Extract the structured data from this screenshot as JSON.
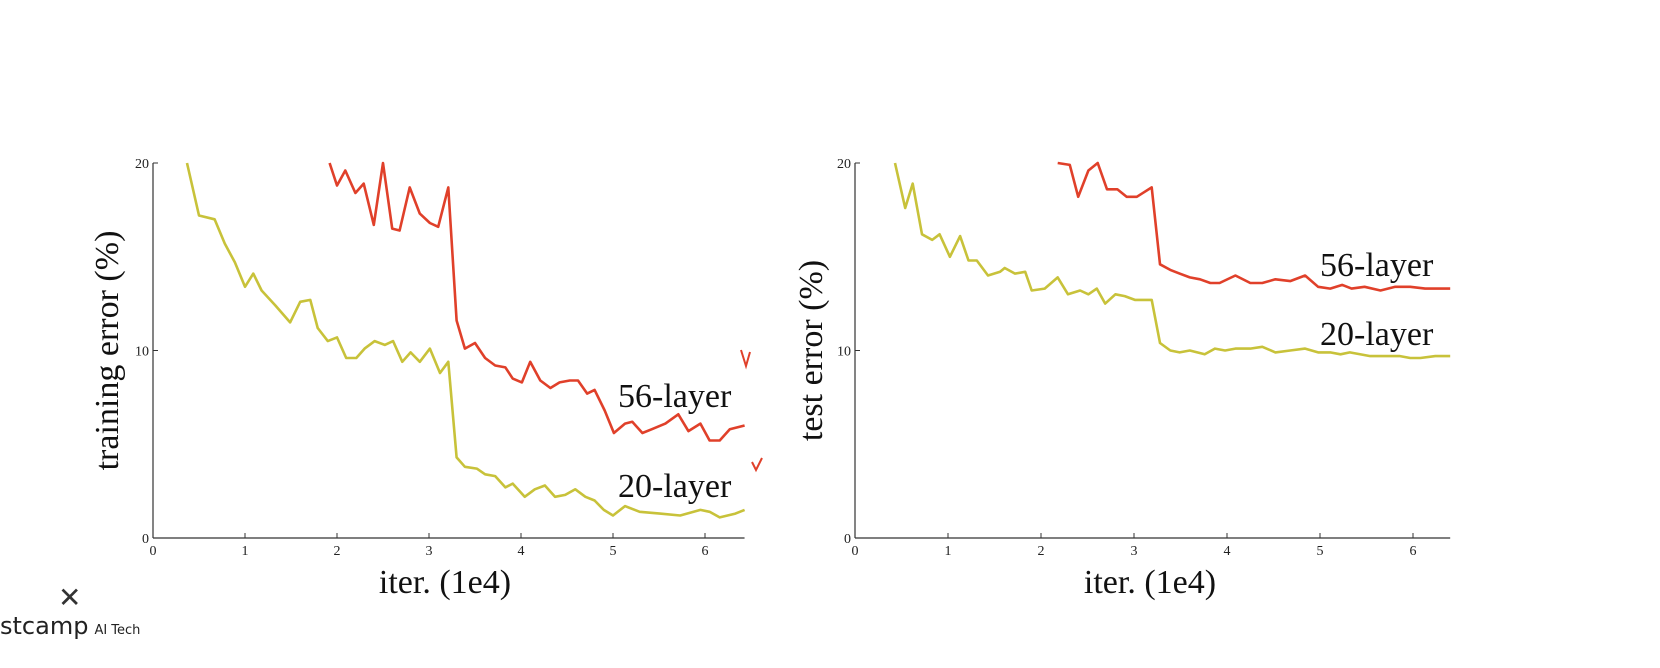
{
  "chart_data": [
    {
      "type": "line",
      "title": "",
      "xlabel": "iter. (1e4)",
      "ylabel": "training error (%)",
      "xlim": [
        0,
        6.43
      ],
      "ylim": [
        0,
        20
      ],
      "xticks": [
        "0",
        "1",
        "2",
        "3",
        "4",
        "5",
        "6"
      ],
      "yticks": [
        "0",
        "10",
        "20"
      ],
      "grid": false,
      "series": [
        {
          "name": "20-layer",
          "color": "#c8c23a",
          "x": [
            0.37,
            0.5,
            0.67,
            0.78,
            0.89,
            1.0,
            1.09,
            1.18,
            1.33,
            1.49,
            1.6,
            1.71,
            1.79,
            1.9,
            2.0,
            2.1,
            2.21,
            2.3,
            2.41,
            2.52,
            2.61,
            2.71,
            2.8,
            2.9,
            3.01,
            3.12,
            3.21,
            3.3,
            3.39,
            3.52,
            3.61,
            3.72,
            3.83,
            3.91,
            4.04,
            4.15,
            4.26,
            4.37,
            4.48,
            4.59,
            4.7,
            4.8,
            4.9,
            5.0,
            5.13,
            5.29,
            5.51,
            5.73,
            5.95,
            6.05,
            6.16,
            6.33,
            6.43
          ],
          "y": [
            20,
            17.2,
            17.0,
            15.7,
            14.7,
            13.4,
            14.1,
            13.2,
            12.4,
            11.5,
            12.6,
            12.7,
            11.2,
            10.5,
            10.7,
            9.6,
            9.6,
            10.1,
            10.5,
            10.3,
            10.5,
            9.4,
            9.9,
            9.4,
            10.1,
            8.8,
            9.4,
            4.3,
            3.8,
            3.7,
            3.4,
            3.3,
            2.7,
            2.9,
            2.2,
            2.6,
            2.8,
            2.2,
            2.3,
            2.6,
            2.2,
            2.0,
            1.5,
            1.2,
            1.7,
            1.4,
            1.3,
            1.2,
            1.5,
            1.4,
            1.1,
            1.3,
            1.5
          ]
        },
        {
          "name": "56-layer",
          "color": "#e0402a",
          "x": [
            1.92,
            2.0,
            2.09,
            2.2,
            2.29,
            2.4,
            2.5,
            2.6,
            2.68,
            2.79,
            2.9,
            3.01,
            3.1,
            3.21,
            3.3,
            3.39,
            3.5,
            3.61,
            3.72,
            3.83,
            3.91,
            4.01,
            4.1,
            4.21,
            4.32,
            4.42,
            4.53,
            4.62,
            4.72,
            4.8,
            4.91,
            5.01,
            5.13,
            5.21,
            5.32,
            5.42,
            5.57,
            5.71,
            5.82,
            5.95,
            6.05,
            6.16,
            6.27,
            6.43
          ],
          "y": [
            20,
            18.8,
            19.6,
            18.4,
            18.9,
            16.7,
            20,
            16.5,
            16.4,
            18.7,
            17.3,
            16.8,
            16.6,
            18.7,
            11.6,
            10.1,
            10.4,
            9.6,
            9.2,
            9.1,
            8.5,
            8.3,
            9.4,
            8.4,
            8.0,
            8.3,
            8.4,
            8.4,
            7.7,
            7.9,
            6.8,
            5.6,
            6.1,
            6.2,
            5.6,
            5.8,
            6.1,
            6.6,
            5.7,
            6.1,
            5.2,
            5.2,
            5.8,
            6.0
          ]
        }
      ],
      "annotations": [
        "56-layer",
        "20-layer"
      ]
    },
    {
      "type": "line",
      "title": "",
      "xlabel": "iter. (1e4)",
      "ylabel": "test error (%)",
      "xlim": [
        0,
        6.4
      ],
      "ylim": [
        0,
        20
      ],
      "xticks": [
        "0",
        "1",
        "2",
        "3",
        "4",
        "5",
        "6"
      ],
      "yticks": [
        "0",
        "10",
        "20"
      ],
      "grid": false,
      "series": [
        {
          "name": "20-layer",
          "color": "#c8c23a",
          "x": [
            0.43,
            0.54,
            0.62,
            0.72,
            0.83,
            0.91,
            1.02,
            1.13,
            1.22,
            1.31,
            1.43,
            1.56,
            1.61,
            1.72,
            1.83,
            1.9,
            2.04,
            2.18,
            2.29,
            2.42,
            2.51,
            2.6,
            2.69,
            2.8,
            2.9,
            3.01,
            3.19,
            3.28,
            3.39,
            3.49,
            3.6,
            3.76,
            3.87,
            3.98,
            4.09,
            4.25,
            4.38,
            4.52,
            4.68,
            4.84,
            4.98,
            5.11,
            5.22,
            5.32,
            5.54,
            5.86,
            5.97,
            6.08,
            6.24,
            6.4
          ],
          "y": [
            20,
            17.6,
            18.9,
            16.2,
            15.9,
            16.2,
            15.0,
            16.1,
            14.8,
            14.8,
            14.0,
            14.2,
            14.4,
            14.1,
            14.2,
            13.2,
            13.3,
            13.9,
            13.0,
            13.2,
            13.0,
            13.3,
            12.5,
            13.0,
            12.9,
            12.7,
            12.7,
            10.4,
            10.0,
            9.9,
            10.0,
            9.8,
            10.1,
            10.0,
            10.1,
            10.1,
            10.2,
            9.9,
            10.0,
            10.1,
            9.9,
            9.9,
            9.8,
            9.9,
            9.7,
            9.7,
            9.6,
            9.6,
            9.7,
            9.7
          ]
        },
        {
          "name": "56-layer",
          "color": "#e0402a",
          "x": [
            2.18,
            2.31,
            2.4,
            2.51,
            2.61,
            2.71,
            2.82,
            2.92,
            3.03,
            3.19,
            3.28,
            3.39,
            3.49,
            3.6,
            3.71,
            3.82,
            3.92,
            4.09,
            4.25,
            4.38,
            4.52,
            4.68,
            4.84,
            4.98,
            5.11,
            5.24,
            5.34,
            5.48,
            5.65,
            5.81,
            5.97,
            6.13,
            6.4
          ],
          "y": [
            20,
            19.9,
            18.2,
            19.6,
            20,
            18.6,
            18.6,
            18.2,
            18.2,
            18.7,
            14.6,
            14.3,
            14.1,
            13.9,
            13.8,
            13.6,
            13.6,
            14.0,
            13.6,
            13.6,
            13.8,
            13.7,
            14.0,
            13.4,
            13.3,
            13.5,
            13.3,
            13.4,
            13.2,
            13.4,
            13.4,
            13.3,
            13.3
          ]
        }
      ],
      "annotations": [
        "56-layer",
        "20-layer"
      ]
    }
  ],
  "overlay": {
    "close_icon": "close-icon",
    "logo_text": "stcamp",
    "logo_sub": "AI Tech"
  }
}
